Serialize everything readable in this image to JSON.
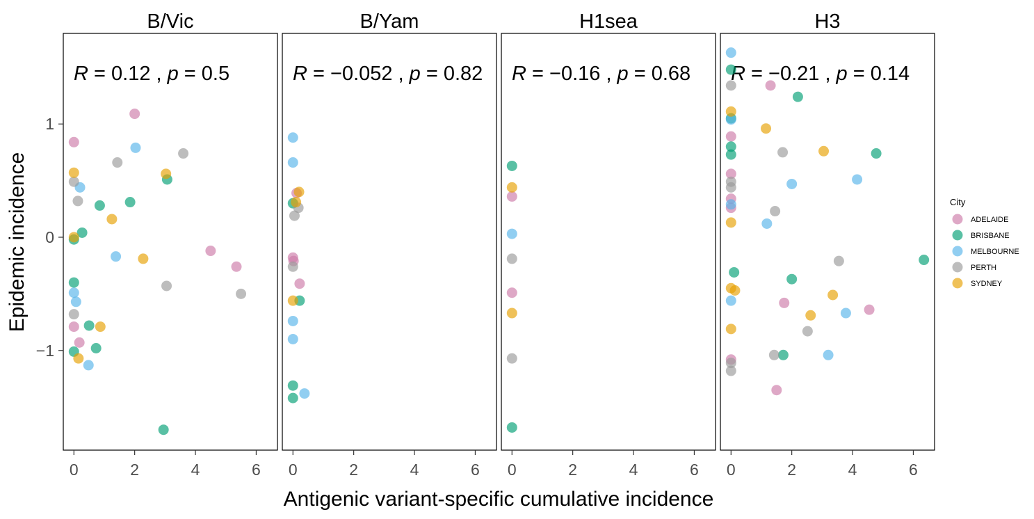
{
  "chart_data": {
    "type": "scatter",
    "xlabel": "Antigenic variant-specific cumulative incidence",
    "ylabel": "Epidemic incidence",
    "xlim": [
      -0.35,
      6.7
    ],
    "ylim": [
      -1.88,
      1.8
    ],
    "xticks": [
      0,
      2,
      4,
      6
    ],
    "yticks": [
      -1,
      0,
      1
    ],
    "grid": false,
    "legend": {
      "title": "City",
      "position": "right"
    },
    "colors": {
      "ADELAIDE": "#CC79A7",
      "BRISBANE": "#009E73",
      "MELBOURNE": "#56B4E9",
      "PERTH": "#999999",
      "SYDNEY": "#E69F00"
    },
    "cities": [
      "ADELAIDE",
      "BRISBANE",
      "MELBOURNE",
      "PERTH",
      "SYDNEY"
    ],
    "panels": [
      {
        "title": "B/Vic",
        "stat": {
          "r_label": "R",
          "r_value": "= 0.12 ,",
          "p_label": "p",
          "p_value": "= 0.5"
        },
        "points": [
          {
            "city": "ADELAIDE",
            "x": 0.0,
            "y": 0.84
          },
          {
            "city": "ADELAIDE",
            "x": 2.0,
            "y": 1.09
          },
          {
            "city": "ADELAIDE",
            "x": 4.5,
            "y": -0.12
          },
          {
            "city": "ADELAIDE",
            "x": 5.35,
            "y": -0.26
          },
          {
            "city": "ADELAIDE",
            "x": 0.0,
            "y": -0.79
          },
          {
            "city": "ADELAIDE",
            "x": 0.18,
            "y": -0.93
          },
          {
            "city": "BRISBANE",
            "x": 0.27,
            "y": 0.04
          },
          {
            "city": "BRISBANE",
            "x": 0.0,
            "y": -0.02
          },
          {
            "city": "BRISBANE",
            "x": 0.85,
            "y": 0.28
          },
          {
            "city": "BRISBANE",
            "x": 1.85,
            "y": 0.31
          },
          {
            "city": "BRISBANE",
            "x": 3.07,
            "y": 0.51
          },
          {
            "city": "BRISBANE",
            "x": 0.0,
            "y": -0.4
          },
          {
            "city": "BRISBANE",
            "x": 0.5,
            "y": -0.78
          },
          {
            "city": "BRISBANE",
            "x": 0.73,
            "y": -0.98
          },
          {
            "city": "BRISBANE",
            "x": 0.0,
            "y": -1.01
          },
          {
            "city": "BRISBANE",
            "x": 2.95,
            "y": -1.7
          },
          {
            "city": "MELBOURNE",
            "x": 2.03,
            "y": 0.79
          },
          {
            "city": "MELBOURNE",
            "x": 0.2,
            "y": 0.44
          },
          {
            "city": "MELBOURNE",
            "x": 1.38,
            "y": -0.17
          },
          {
            "city": "MELBOURNE",
            "x": 0.0,
            "y": -0.49
          },
          {
            "city": "MELBOURNE",
            "x": 0.07,
            "y": -0.57
          },
          {
            "city": "MELBOURNE",
            "x": 0.48,
            "y": -1.13
          },
          {
            "city": "PERTH",
            "x": 3.6,
            "y": 0.74
          },
          {
            "city": "PERTH",
            "x": 1.43,
            "y": 0.66
          },
          {
            "city": "PERTH",
            "x": 0.0,
            "y": 0.49
          },
          {
            "city": "PERTH",
            "x": 0.13,
            "y": 0.32
          },
          {
            "city": "PERTH",
            "x": 3.05,
            "y": -0.43
          },
          {
            "city": "PERTH",
            "x": 5.5,
            "y": -0.5
          },
          {
            "city": "PERTH",
            "x": 0.0,
            "y": -0.68
          },
          {
            "city": "SYDNEY",
            "x": 0.0,
            "y": 0.57
          },
          {
            "city": "SYDNEY",
            "x": 3.03,
            "y": 0.56
          },
          {
            "city": "SYDNEY",
            "x": 1.25,
            "y": 0.16
          },
          {
            "city": "SYDNEY",
            "x": 0.0,
            "y": 0.0
          },
          {
            "city": "SYDNEY",
            "x": 2.28,
            "y": -0.19
          },
          {
            "city": "SYDNEY",
            "x": 0.87,
            "y": -0.79
          },
          {
            "city": "SYDNEY",
            "x": 0.15,
            "y": -1.07
          }
        ]
      },
      {
        "title": "B/Yam",
        "stat": {
          "r_label": "R",
          "r_value": "= −0.052 ,",
          "p_label": "p",
          "p_value": "= 0.82"
        },
        "points": [
          {
            "city": "ADELAIDE",
            "x": 0.12,
            "y": 0.39
          },
          {
            "city": "ADELAIDE",
            "x": 0.0,
            "y": -0.18
          },
          {
            "city": "ADELAIDE",
            "x": 0.02,
            "y": -0.21
          },
          {
            "city": "ADELAIDE",
            "x": 0.22,
            "y": -0.41
          },
          {
            "city": "BRISBANE",
            "x": 0.0,
            "y": 0.3
          },
          {
            "city": "BRISBANE",
            "x": 0.22,
            "y": -0.56
          },
          {
            "city": "BRISBANE",
            "x": 0.0,
            "y": -1.31
          },
          {
            "city": "BRISBANE",
            "x": 0.0,
            "y": -1.42
          },
          {
            "city": "MELBOURNE",
            "x": 0.0,
            "y": 0.88
          },
          {
            "city": "MELBOURNE",
            "x": 0.0,
            "y": 0.66
          },
          {
            "city": "MELBOURNE",
            "x": 0.0,
            "y": -0.74
          },
          {
            "city": "MELBOURNE",
            "x": 0.0,
            "y": -0.9
          },
          {
            "city": "MELBOURNE",
            "x": 0.38,
            "y": -1.38
          },
          {
            "city": "PERTH",
            "x": 0.05,
            "y": 0.19
          },
          {
            "city": "PERTH",
            "x": 0.18,
            "y": 0.26
          },
          {
            "city": "PERTH",
            "x": 0.0,
            "y": -0.26
          },
          {
            "city": "SYDNEY",
            "x": 0.2,
            "y": 0.4
          },
          {
            "city": "SYDNEY",
            "x": 0.1,
            "y": 0.31
          },
          {
            "city": "SYDNEY",
            "x": 0.0,
            "y": -0.56
          }
        ]
      },
      {
        "title": "H1sea",
        "stat": {
          "r_label": "R",
          "r_value": "= −0.16 ,",
          "p_label": "p",
          "p_value": "= 0.68"
        },
        "points": [
          {
            "city": "ADELAIDE",
            "x": 0.0,
            "y": 0.36
          },
          {
            "city": "ADELAIDE",
            "x": 0.0,
            "y": -0.49
          },
          {
            "city": "BRISBANE",
            "x": 0.0,
            "y": 0.63
          },
          {
            "city": "BRISBANE",
            "x": 0.0,
            "y": -1.68
          },
          {
            "city": "MELBOURNE",
            "x": 0.0,
            "y": 0.03
          },
          {
            "city": "PERTH",
            "x": 0.0,
            "y": -0.19
          },
          {
            "city": "PERTH",
            "x": 0.0,
            "y": -1.07
          },
          {
            "city": "SYDNEY",
            "x": 0.0,
            "y": 0.44
          },
          {
            "city": "SYDNEY",
            "x": 0.0,
            "y": -0.67
          }
        ]
      },
      {
        "title": "H3",
        "stat": {
          "r_label": "R",
          "r_value": "= −0.21 ,",
          "p_label": "p",
          "p_value": "= 0.14"
        },
        "points": [
          {
            "city": "ADELAIDE",
            "x": 1.3,
            "y": 1.34
          },
          {
            "city": "ADELAIDE",
            "x": 0.0,
            "y": 0.89
          },
          {
            "city": "ADELAIDE",
            "x": 0.0,
            "y": 0.56
          },
          {
            "city": "ADELAIDE",
            "x": 0.0,
            "y": 0.34
          },
          {
            "city": "ADELAIDE",
            "x": 0.0,
            "y": 0.26
          },
          {
            "city": "ADELAIDE",
            "x": 1.75,
            "y": -0.58
          },
          {
            "city": "ADELAIDE",
            "x": 4.55,
            "y": -0.64
          },
          {
            "city": "ADELAIDE",
            "x": 0.0,
            "y": -1.08
          },
          {
            "city": "ADELAIDE",
            "x": 1.5,
            "y": -1.35
          },
          {
            "city": "BRISBANE",
            "x": 0.0,
            "y": 1.48
          },
          {
            "city": "BRISBANE",
            "x": 2.2,
            "y": 1.24
          },
          {
            "city": "BRISBANE",
            "x": 0.0,
            "y": 1.05
          },
          {
            "city": "BRISBANE",
            "x": 0.0,
            "y": 0.8
          },
          {
            "city": "BRISBANE",
            "x": 0.0,
            "y": 0.73
          },
          {
            "city": "BRISBANE",
            "x": 4.78,
            "y": 0.74
          },
          {
            "city": "BRISBANE",
            "x": 6.35,
            "y": -0.2
          },
          {
            "city": "BRISBANE",
            "x": 0.1,
            "y": -0.31
          },
          {
            "city": "BRISBANE",
            "x": 2.0,
            "y": -0.37
          },
          {
            "city": "BRISBANE",
            "x": 1.72,
            "y": -1.04
          },
          {
            "city": "MELBOURNE",
            "x": 0.0,
            "y": 1.63
          },
          {
            "city": "MELBOURNE",
            "x": 0.0,
            "y": 1.04
          },
          {
            "city": "MELBOURNE",
            "x": 2.0,
            "y": 0.47
          },
          {
            "city": "MELBOURNE",
            "x": 4.15,
            "y": 0.51
          },
          {
            "city": "MELBOURNE",
            "x": 0.0,
            "y": 0.29
          },
          {
            "city": "MELBOURNE",
            "x": 1.18,
            "y": 0.12
          },
          {
            "city": "MELBOURNE",
            "x": 0.0,
            "y": -0.56
          },
          {
            "city": "MELBOURNE",
            "x": 3.78,
            "y": -0.67
          },
          {
            "city": "MELBOURNE",
            "x": 3.2,
            "y": -1.04
          },
          {
            "city": "PERTH",
            "x": 0.0,
            "y": 1.34
          },
          {
            "city": "PERTH",
            "x": 1.7,
            "y": 0.75
          },
          {
            "city": "PERTH",
            "x": 0.0,
            "y": 0.49
          },
          {
            "city": "PERTH",
            "x": 0.0,
            "y": 0.44
          },
          {
            "city": "PERTH",
            "x": 1.45,
            "y": 0.23
          },
          {
            "city": "PERTH",
            "x": 3.55,
            "y": -0.21
          },
          {
            "city": "PERTH",
            "x": 2.52,
            "y": -0.83
          },
          {
            "city": "PERTH",
            "x": 1.42,
            "y": -1.04
          },
          {
            "city": "PERTH",
            "x": 0.0,
            "y": -1.11
          },
          {
            "city": "PERTH",
            "x": 0.0,
            "y": -1.18
          },
          {
            "city": "SYDNEY",
            "x": 0.0,
            "y": 1.11
          },
          {
            "city": "SYDNEY",
            "x": 1.15,
            "y": 0.96
          },
          {
            "city": "SYDNEY",
            "x": 3.05,
            "y": 0.76
          },
          {
            "city": "SYDNEY",
            "x": 0.0,
            "y": 0.13
          },
          {
            "city": "SYDNEY",
            "x": 0.0,
            "y": -0.45
          },
          {
            "city": "SYDNEY",
            "x": 0.13,
            "y": -0.47
          },
          {
            "city": "SYDNEY",
            "x": 3.35,
            "y": -0.51
          },
          {
            "city": "SYDNEY",
            "x": 2.62,
            "y": -0.69
          },
          {
            "city": "SYDNEY",
            "x": 0.0,
            "y": -0.81
          }
        ]
      }
    ]
  }
}
